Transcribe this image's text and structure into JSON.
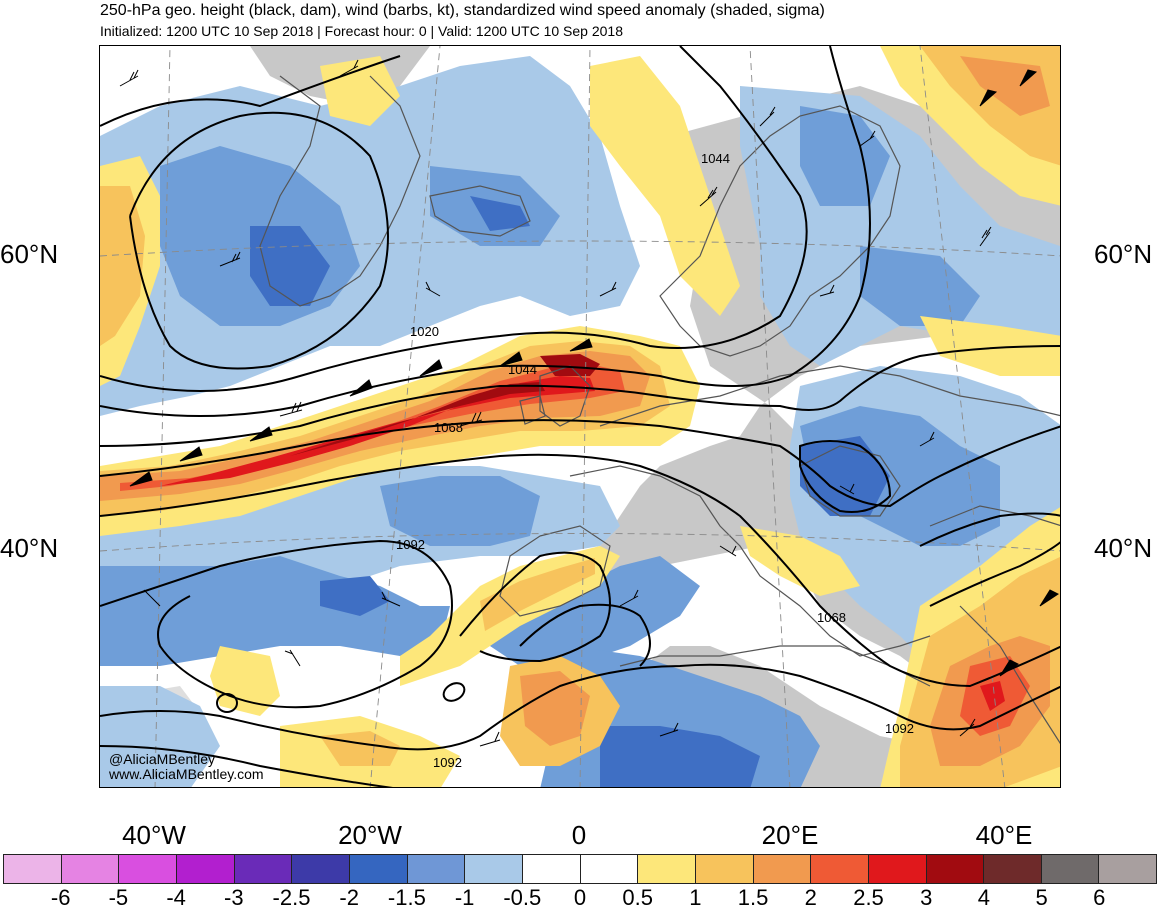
{
  "header": {
    "title": "250-hPa geo. height (black, dam), wind (barbs, kt), standardized wind speed anomaly (shaded, sigma)",
    "subtitle": "Initialized: 1200 UTC 10 Sep 2018 | Forecast hour: 0 | Valid: 1200 UTC 10 Sep 2018"
  },
  "map": {
    "lat_labels_left": [
      "60°N",
      "40°N"
    ],
    "lat_labels_right": [
      "60°N",
      "40°N"
    ],
    "lon_labels": [
      "40°W",
      "20°W",
      "0",
      "20°E",
      "40°E"
    ],
    "contour_labels": [
      "1020",
      "1044",
      "1044",
      "1068",
      "1092",
      "1068",
      "1092",
      "1092"
    ],
    "credit_handle": "@AliciaMBentley",
    "credit_site": "www.AliciaMBentley.com",
    "colors": {
      "jet_core": "#a50f15",
      "jet_strong": "#e31a1c",
      "jet_mid": "#f46d43",
      "positive_weak": "#fde77a",
      "positive_light": "#f7c35c",
      "negative_light": "#a9c9e8",
      "negative_mid": "#6f9ed8",
      "negative_strong": "#3f6fc4",
      "land_high": "#c6c6c6",
      "coast": "#555555"
    }
  },
  "colorbar": {
    "labels": [
      "-6",
      "-5",
      "-4",
      "-3",
      "-2.5",
      "-2",
      "-1.5",
      "-1",
      "-0.5",
      "0",
      "0.5",
      "1",
      "1.5",
      "2",
      "2.5",
      "3",
      "4",
      "5",
      "6"
    ],
    "colors": [
      "#ecb4e8",
      "#e583e3",
      "#d94fe0",
      "#b21fcf",
      "#6a2bb8",
      "#3d3aa8",
      "#3566c0",
      "#6f97d6",
      "#a9c9e8",
      "#ffffff",
      "#ffffff",
      "#fde77a",
      "#f7c35c",
      "#f19a4f",
      "#ef5a35",
      "#e0181c",
      "#a10b10",
      "#6e2a2a",
      "#6f6a6a",
      "#a89f9f"
    ]
  }
}
